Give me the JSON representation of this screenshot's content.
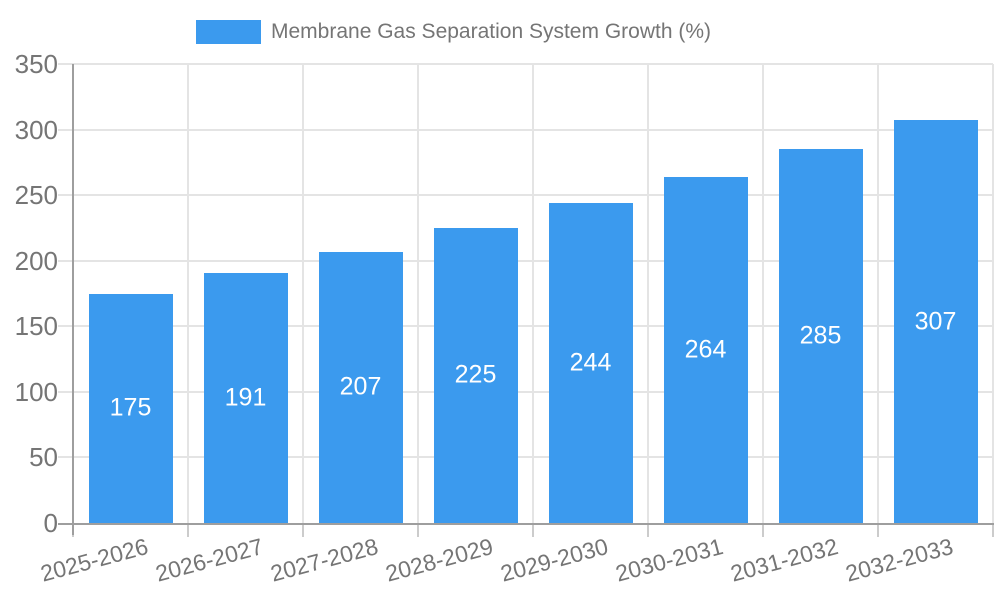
{
  "chart_data": {
    "type": "bar",
    "title": "Membrane Gas Separation System Growth (%)",
    "categories": [
      "2025-2026",
      "2026-2027",
      "2027-2028",
      "2028-2029",
      "2029-2030",
      "2030-2031",
      "2031-2032",
      "2032-2033"
    ],
    "values": [
      175,
      191,
      207,
      225,
      244,
      264,
      285,
      307
    ],
    "value_labels": [
      "175",
      "191",
      "207",
      "225",
      "244",
      "264",
      "285",
      "307"
    ],
    "ytick_labels": [
      "0",
      "50",
      "100",
      "150",
      "200",
      "250",
      "300",
      "350"
    ],
    "yticks": [
      0,
      50,
      100,
      150,
      200,
      250,
      300,
      350
    ],
    "ylim": [
      0,
      350
    ],
    "xlabel": "",
    "ylabel": "",
    "grid": true,
    "legend_position": "top",
    "value_label_position": "inside-center",
    "colors": {
      "bar": "#3B9AEE",
      "grid": "#E4E4E4",
      "axis": "#9E9E9E",
      "tick": "#CCCCCC",
      "tick_text": "#757575",
      "legend_text": "#757575",
      "value_text": "#FFFFFF",
      "background": "#FFFFFF"
    }
  }
}
